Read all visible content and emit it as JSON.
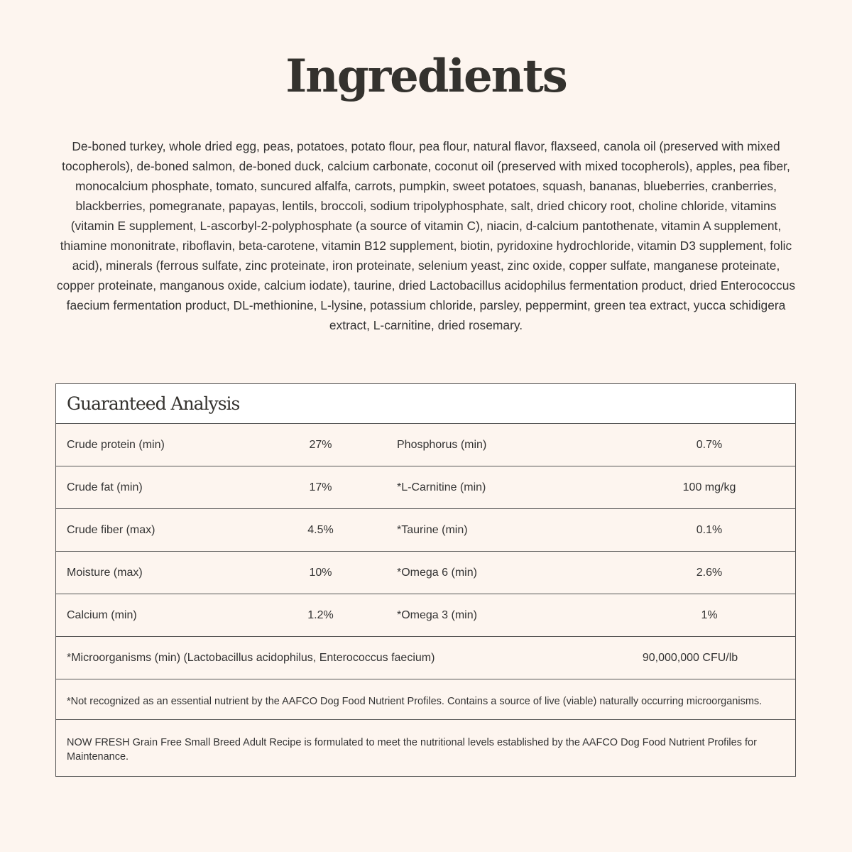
{
  "title": "Ingredients",
  "ingredients": "De-boned turkey, whole dried egg, peas, potatoes, potato flour, pea flour, natural flavor, flaxseed, canola oil (preserved with mixed tocopherols), de-boned salmon, de-boned duck, calcium carbonate, coconut oil (preserved with mixed tocopherols), apples, pea fiber, monocalcium phosphate, tomato, suncured alfalfa, carrots, pumpkin, sweet potatoes, squash, bananas, blueberries, cranberries, blackberries, pomegranate, papayas, lentils, broccoli, sodium tripolyphosphate, salt, dried chicory root, choline chloride, vitamins (vitamin E supplement, L-ascorbyl-2-polyphosphate (a source of vitamin C), niacin, d-calcium pantothenate, vitamin A supplement, thiamine mononitrate, riboflavin, beta-carotene, vitamin B12 supplement, biotin, pyridoxine hydrochloride, vitamin D3 supplement, folic acid), minerals (ferrous sulfate, zinc proteinate, iron proteinate, selenium yeast, zinc oxide, copper sulfate, manganese proteinate, copper proteinate, manganous oxide, calcium iodate), taurine, dried Lactobacillus acidophilus fermentation product, dried Enterococcus faecium fermentation product, DL-methionine, L-lysine, potassium chloride, parsley, peppermint, green tea extract, yucca schidigera extract, L-carnitine, dried rosemary.",
  "analysis": {
    "title": "Guaranteed Analysis",
    "rows": [
      {
        "label1": "Crude protein (min)",
        "value1": "27%",
        "label2": "Phosphorus (min)",
        "value2": "0.7%"
      },
      {
        "label1": "Crude fat (min)",
        "value1": "17%",
        "label2": "*L-Carnitine (min)",
        "value2": "100 mg/kg"
      },
      {
        "label1": "Crude fiber (max)",
        "value1": "4.5%",
        "label2": "*Taurine (min)",
        "value2": "0.1%"
      },
      {
        "label1": "Moisture (max)",
        "value1": "10%",
        "label2": "*Omega 6 (min)",
        "value2": "2.6%"
      },
      {
        "label1": "Calcium (min)",
        "value1": "1.2%",
        "label2": "*Omega 3 (min)",
        "value2": "1%"
      }
    ],
    "micro": {
      "label": "*Microorganisms (min) (Lactobacillus acidophilus, Enterococcus faecium)",
      "value": "90,000,000 CFU/lb"
    },
    "footnote": "*Not recognized as an essential nutrient by the AAFCO Dog Food Nutrient Profiles. Contains a source of live (viable) naturally occurring microorganisms.",
    "statement": "NOW FRESH Grain Free Small Breed Adult Recipe is formulated to meet the nutritional levels established by the AAFCO Dog Food Nutrient Profiles for Maintenance."
  }
}
